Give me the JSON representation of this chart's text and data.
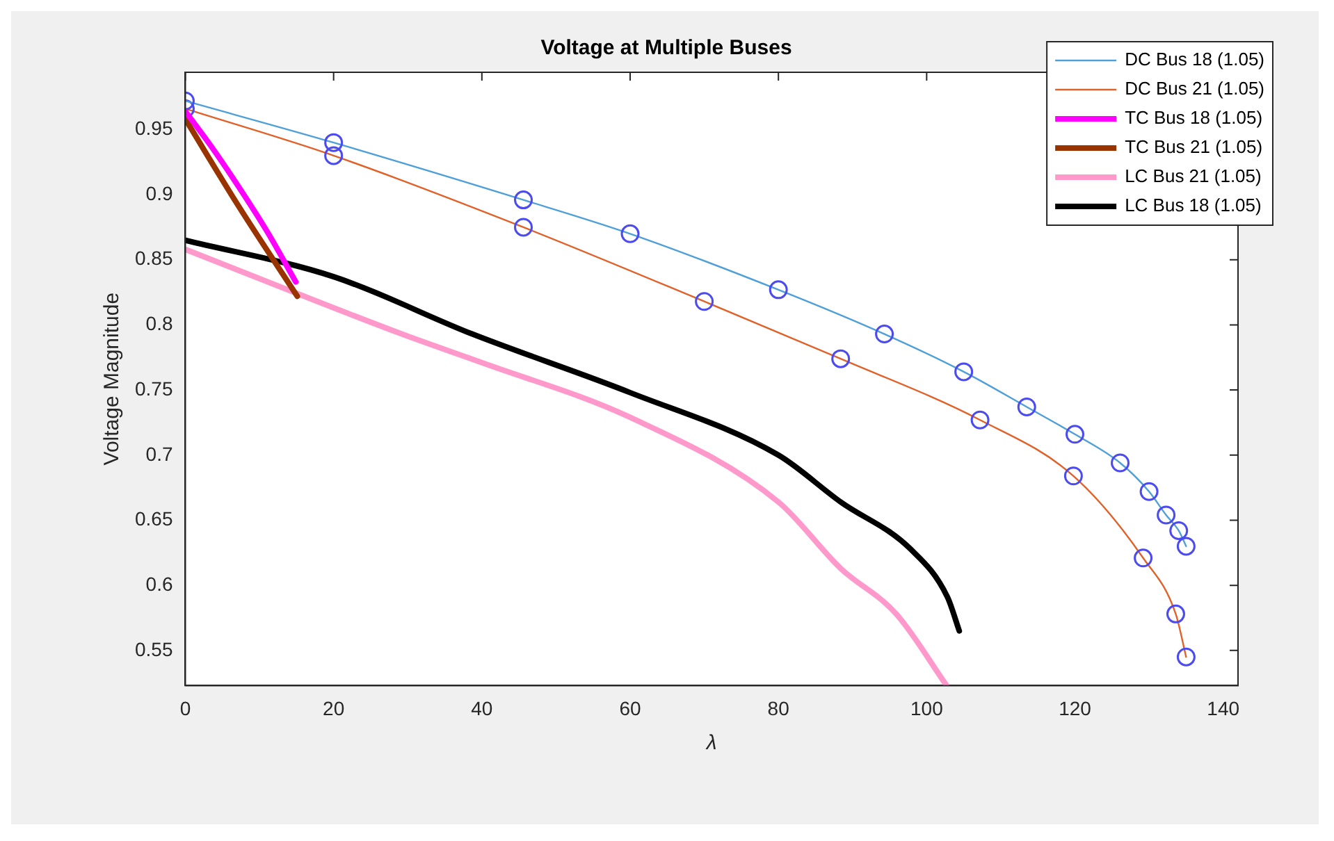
{
  "chart_data": {
    "type": "line",
    "title": "Voltage at Multiple Buses",
    "xlabel": "λ",
    "ylabel": "Voltage Magnitude",
    "xlim": [
      0,
      142
    ],
    "xticks": [
      0,
      20,
      40,
      60,
      80,
      100,
      120,
      140
    ],
    "ylim": [
      0.523,
      0.994
    ],
    "yticks": [
      0.55,
      0.6,
      0.65,
      0.7,
      0.75,
      0.8,
      0.85,
      0.9,
      0.95
    ],
    "grid": false,
    "legend": "top right",
    "series": [
      {
        "name": "DC Bus 18 (1.05)",
        "color": "#4f9fd8",
        "marker": "circle",
        "x": [
          0,
          20,
          45.6,
          60,
          80,
          94.3,
          105,
          113.5,
          120,
          126.1,
          130,
          132.3,
          134,
          135
        ],
        "values": [
          0.972,
          0.94,
          0.896,
          0.87,
          0.827,
          0.793,
          0.764,
          0.737,
          0.716,
          0.694,
          0.672,
          0.654,
          0.642,
          0.63
        ]
      },
      {
        "name": "DC Bus 21 (1.05)",
        "color": "#e0622a",
        "marker": "circle",
        "x": [
          0,
          20,
          45.6,
          70,
          88.4,
          107.2,
          119.8,
          129.2,
          133.6,
          135
        ],
        "values": [
          0.966,
          0.93,
          0.875,
          0.818,
          0.774,
          0.727,
          0.684,
          0.621,
          0.578,
          0.545
        ]
      },
      {
        "name": "TC Bus 18 (1.05)",
        "color": "#ff00ff",
        "marker": "none",
        "x": [
          0,
          3.5,
          7.2,
          11,
          14.9
        ],
        "values": [
          0.964,
          0.937,
          0.906,
          0.872,
          0.833
        ]
      },
      {
        "name": "TC Bus 21 (1.05)",
        "color": "#993300",
        "marker": "none",
        "x": [
          0,
          7.2,
          15.1
        ],
        "values": [
          0.958,
          0.891,
          0.822
        ]
      },
      {
        "name": "LC Bus 21 (1.05)",
        "color": "#ff99cc",
        "marker": "none",
        "x": [
          0,
          29.2,
          40,
          60,
          80,
          88.4,
          95.9,
          102.7
        ],
        "values": [
          0.858,
          0.793,
          0.771,
          0.729,
          0.664,
          0.613,
          0.578,
          0.523
        ]
      },
      {
        "name": "LC Bus 18 (1.05)",
        "color": "#000000",
        "marker": "none",
        "x": [
          0,
          20,
          38.7,
          60,
          80,
          88.4,
          97.8,
          102.8,
          104.4
        ],
        "values": [
          0.865,
          0.837,
          0.793,
          0.748,
          0.7,
          0.664,
          0.628,
          0.591,
          0.565
        ]
      }
    ]
  }
}
